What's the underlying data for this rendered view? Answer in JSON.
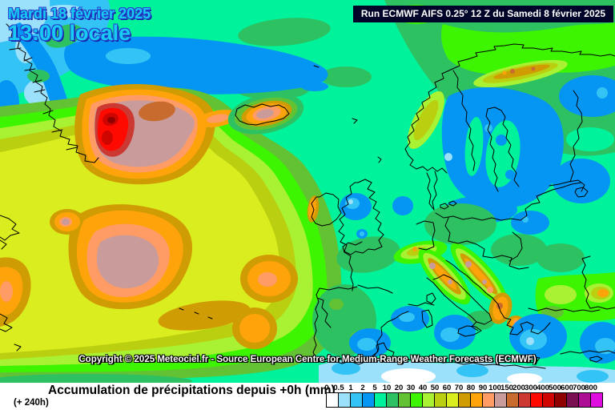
{
  "datetime": {
    "line1": "Mardi 18 février 2025",
    "line2": "13:00 locale",
    "text_color": "#17CBF2",
    "outline_color": "#2740CF"
  },
  "header": {
    "run_info": "Run ECMWF AIFS 0.25° 12 Z du Samedi 8 février 2025",
    "bg_color": "#000428",
    "text_color": "#FFFFFF"
  },
  "copyright": {
    "text": "Copyright © 2025 Meteociel.fr - Source European Centre for Medium-Range Weather Forecasts (ECMWF)"
  },
  "legend": {
    "title": "Accumulation de précipitations depuis +0h (mm)",
    "subtitle": "(+ 240h)",
    "unit": "mm",
    "ticks": [
      "0",
      "0.5",
      "1",
      "2",
      "5",
      "10",
      "20",
      "30",
      "40",
      "50",
      "60",
      "70",
      "80",
      "90",
      "100",
      "150",
      "200",
      "300",
      "400",
      "500",
      "600",
      "700",
      "800"
    ],
    "colors": [
      "#FFFFFF",
      "#9BE1FB",
      "#33C4F5",
      "#0596F3",
      "#00F29B",
      "#2EC162",
      "#63C233",
      "#3DF500",
      "#A8F233",
      "#BACF10",
      "#D9ED1F",
      "#D09C04",
      "#FFA30A",
      "#FF9C66",
      "#C99B9B",
      "#C76B2E",
      "#CC3832",
      "#FF0A00",
      "#CF0500",
      "#8F0000",
      "#7A0F52",
      "#AD0D93",
      "#E00DE0"
    ]
  }
}
